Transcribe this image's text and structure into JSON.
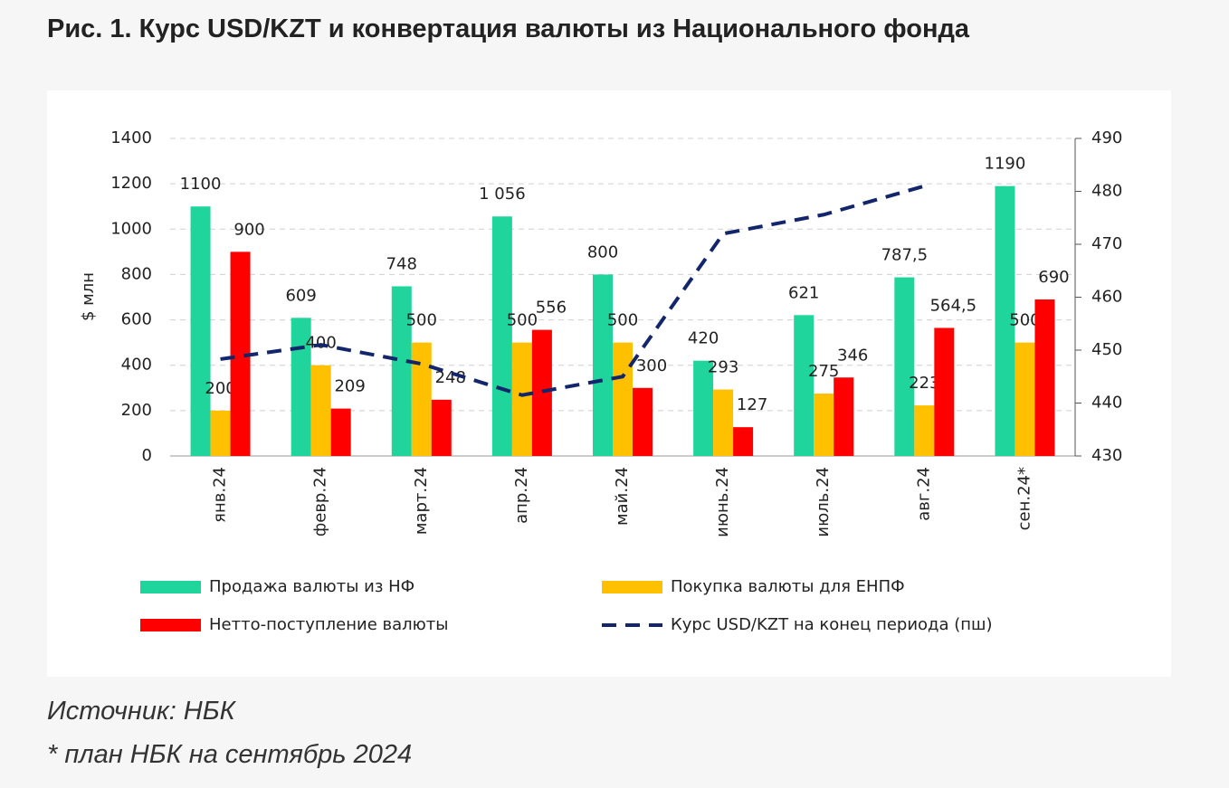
{
  "chart_data": {
    "type": "bar",
    "title": "Рис. 1. Курс USD/KZT и конвертация валюты из Национального фонда",
    "ylabel": "$ млн",
    "source": "Источник: НБК",
    "note": "* план НБК на сентябрь 2024",
    "categories": [
      "янв.24",
      "февр.24",
      "март.24",
      "апр.24",
      "май.24",
      "июнь.24",
      "июль.24",
      "авг.24",
      "сен.24*"
    ],
    "series": [
      {
        "name": "Продажа валюты из НФ",
        "color": "#1fd59b",
        "values": [
          1100,
          609,
          748,
          1056,
          800,
          420,
          621,
          787.5,
          1190
        ],
        "value_labels": [
          "1100",
          "609",
          "748",
          "1 056",
          "800",
          "420",
          "621",
          "787,5",
          "1190"
        ]
      },
      {
        "name": "Покупка валюты для ЕНПФ",
        "color": "#ffc000",
        "values": [
          200,
          400,
          500,
          500,
          500,
          293,
          275,
          223,
          500
        ],
        "value_labels": [
          "200",
          "400",
          "500",
          "500",
          "500",
          "293",
          "275",
          "223",
          "500"
        ]
      },
      {
        "name": "Нетто-поступление валюты",
        "color": "#ff0000",
        "values": [
          900,
          209,
          248,
          556,
          300,
          127,
          346,
          564.5,
          690
        ],
        "value_labels": [
          "900",
          "209",
          "248",
          "556",
          "300",
          "127",
          "346",
          "564,5",
          "690"
        ]
      },
      {
        "name": "Курс USD/KZT на конец периода (пш)",
        "color": "#13266b",
        "type": "line",
        "axis": "y2",
        "dashed": true,
        "values": [
          448.3,
          451,
          447.4,
          441.5,
          445,
          472,
          475.6,
          481,
          null
        ]
      }
    ],
    "ylim": [
      0,
      1400
    ],
    "yticks": [
      0,
      200,
      400,
      600,
      800,
      1000,
      1200,
      1400
    ],
    "y2lim": [
      430,
      490
    ],
    "y2ticks": [
      430,
      440,
      450,
      460,
      470,
      480,
      490
    ],
    "grid": true
  }
}
